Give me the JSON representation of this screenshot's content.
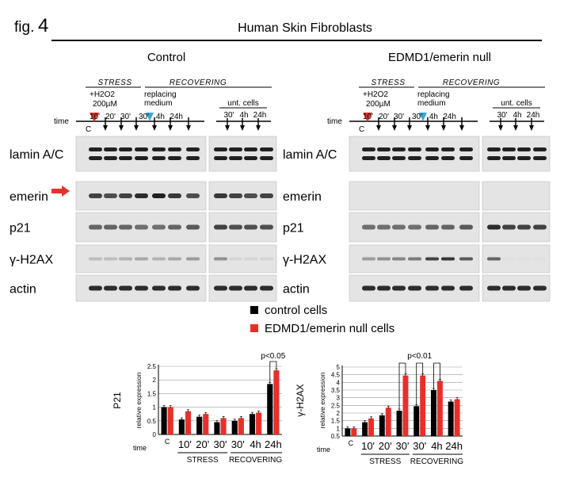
{
  "figure": {
    "label": "fig.",
    "number": "4",
    "title": "Human Skin Fibroblasts"
  },
  "panels": [
    {
      "title": "Control",
      "has_arrow": true,
      "stress_label": "STRESS",
      "recover_label": "RECOVERING",
      "h2o2_label": "+H2O2",
      "conc_label": "200µM",
      "replacing_label1": "replacing",
      "replacing_label2": "medium",
      "unt_label": "unt. cells",
      "time_label": "time",
      "c_label": "C",
      "lane_labels": [
        "10'",
        "20'",
        "30'",
        "30'",
        "4h",
        "24h"
      ],
      "unt_lane_labels": [
        "30'",
        "4h",
        "24h"
      ],
      "blots": [
        {
          "name": "lamin A/C",
          "style": "double",
          "intensity": [
            0.9,
            0.9,
            0.9,
            0.9,
            0.9,
            0.9,
            0.9,
            0.9,
            0.9,
            0.9,
            0.9
          ]
        },
        {
          "name": "emerin",
          "style": "single",
          "intensity": [
            0.75,
            0.7,
            0.75,
            0.85,
            0.9,
            0.8,
            0.7,
            0.8,
            0.75,
            0.7,
            0.75
          ]
        },
        {
          "name": "p21",
          "style": "single",
          "intensity": [
            0.6,
            0.6,
            0.6,
            0.55,
            0.55,
            0.6,
            0.65,
            0.75,
            0.7,
            0.7,
            0.7
          ]
        },
        {
          "name": "γ-H2AX",
          "style": "faint",
          "intensity": [
            0.2,
            0.2,
            0.25,
            0.3,
            0.25,
            0.3,
            0.35,
            0.4,
            0.1,
            0.1,
            0.1
          ]
        },
        {
          "name": "actin",
          "style": "single",
          "intensity": [
            0.85,
            0.85,
            0.85,
            0.85,
            0.85,
            0.85,
            0.85,
            0.85,
            0.85,
            0.85,
            0.85
          ]
        }
      ]
    },
    {
      "title": "EDMD1/emerin null",
      "has_arrow": false,
      "stress_label": "STRESS",
      "recover_label": "RECOVERING",
      "h2o2_label": "+H2O2",
      "conc_label": "200µM",
      "replacing_label1": "replacing",
      "replacing_label2": "medium",
      "unt_label": "unt. cells",
      "time_label": "time",
      "c_label": "C",
      "lane_labels": [
        "10'",
        "20'",
        "30'",
        "30'",
        "4h",
        "24h"
      ],
      "unt_lane_labels": [
        "30'",
        "4h",
        "24h"
      ],
      "blots": [
        {
          "name": "lamin A/C",
          "style": "double",
          "intensity": [
            0.9,
            0.9,
            0.9,
            0.9,
            0.9,
            0.9,
            0.9,
            0.9,
            0.9,
            0.9,
            0.9
          ]
        },
        {
          "name": "emerin",
          "style": "none",
          "intensity": [
            0,
            0,
            0,
            0,
            0,
            0,
            0,
            0,
            0,
            0,
            0
          ]
        },
        {
          "name": "p21",
          "style": "single",
          "intensity": [
            0.55,
            0.55,
            0.55,
            0.55,
            0.6,
            0.6,
            0.65,
            0.85,
            0.75,
            0.75,
            0.75
          ]
        },
        {
          "name": "γ-H2AX",
          "style": "faint",
          "intensity": [
            0.35,
            0.4,
            0.45,
            0.5,
            0.75,
            0.8,
            0.65,
            0.6,
            0.05,
            0.05,
            0.05
          ]
        },
        {
          "name": "actin",
          "style": "single",
          "intensity": [
            0.85,
            0.85,
            0.85,
            0.85,
            0.85,
            0.85,
            0.85,
            0.85,
            0.85,
            0.85,
            0.85
          ]
        }
      ]
    }
  ],
  "legend": [
    {
      "label": "control cells",
      "color": "#000000"
    },
    {
      "label": "EDMD1/emerin null cells",
      "color": "#e8302a"
    }
  ],
  "chart_data": [
    {
      "type": "bar",
      "title": "P21",
      "ylabel": "relative expression",
      "ylim": [
        0,
        2.5
      ],
      "yticks": [
        "0",
        "0.5",
        "1",
        "1.5",
        "2",
        "2.5"
      ],
      "categories": [
        "C",
        "10'",
        "20'",
        "30'",
        "30'",
        "4h",
        "24h"
      ],
      "series": [
        {
          "name": "control cells",
          "color": "#000000",
          "values": [
            1.0,
            0.55,
            0.65,
            0.45,
            0.5,
            0.75,
            1.85
          ]
        },
        {
          "name": "EDMD1/emerin null cells",
          "color": "#e8302a",
          "values": [
            1.0,
            0.85,
            0.75,
            0.6,
            0.6,
            0.8,
            2.35
          ]
        }
      ],
      "annotation": "p<0.05",
      "time_label": "time",
      "group_labels": [
        "STRESS",
        "RECOVERING"
      ]
    },
    {
      "type": "bar",
      "title": "γ-H2AX",
      "ylabel": "relative expression",
      "ylim": [
        0.5,
        5
      ],
      "yticks": [
        "0.5",
        "1",
        "1.5",
        "2",
        "2.5",
        "3",
        "3.5",
        "4",
        "4.5",
        "5"
      ],
      "categories": [
        "C",
        "10'",
        "20'",
        "30'",
        "30'",
        "4h",
        "24h"
      ],
      "series": [
        {
          "name": "control cells",
          "color": "#000000",
          "values": [
            1.0,
            1.4,
            1.85,
            2.15,
            2.45,
            3.5,
            2.75
          ]
        },
        {
          "name": "EDMD1/emerin null cells",
          "color": "#e8302a",
          "values": [
            1.0,
            1.65,
            2.35,
            4.45,
            4.45,
            4.1,
            2.9
          ]
        }
      ],
      "annotation": "p<0.01",
      "time_label": "time",
      "group_labels": [
        "STRESS",
        "RECOVERING"
      ]
    }
  ]
}
